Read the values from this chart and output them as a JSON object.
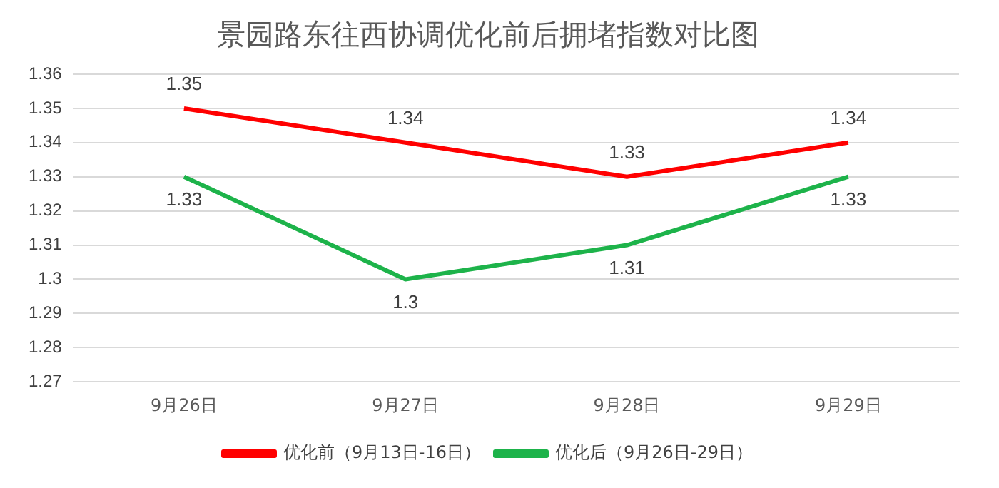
{
  "chart_data": {
    "type": "line",
    "title": "景园路东往西协调优化前后拥堵指数对比图",
    "categories": [
      "9月26日",
      "9月27日",
      "9月28日",
      "9月29日"
    ],
    "series": [
      {
        "name": "优化前（9月13日-16日）",
        "color": "#ff0000",
        "values": [
          1.35,
          1.34,
          1.33,
          1.34
        ]
      },
      {
        "name": "优化后（9月26日-29日）",
        "color": "#1db34a",
        "values": [
          1.33,
          1.3,
          1.31,
          1.33
        ]
      }
    ],
    "ylim": [
      1.27,
      1.36
    ],
    "yticks": [
      1.27,
      1.28,
      1.29,
      1.3,
      1.31,
      1.32,
      1.33,
      1.34,
      1.35,
      1.36
    ],
    "grid": "y",
    "legend": "bottom",
    "data_labels": true,
    "marker": "none",
    "line_style": "solid"
  }
}
